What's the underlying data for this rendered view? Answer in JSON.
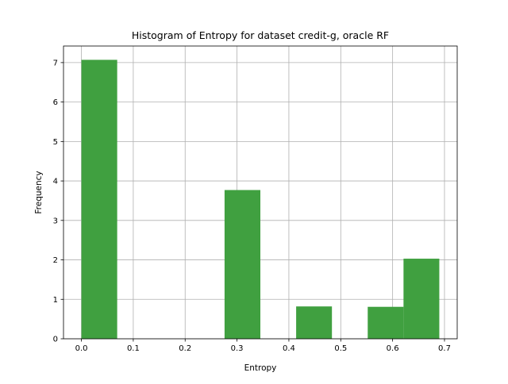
{
  "chart_data": {
    "type": "bar",
    "title": "Histogram of Entropy for dataset credit-g, oracle RF",
    "xlabel": "Entropy",
    "ylabel": "Frequency",
    "bins": [
      {
        "x0": 0.0,
        "x1": 0.069,
        "value": 7.07
      },
      {
        "x0": 0.069,
        "x1": 0.138,
        "value": 0
      },
      {
        "x0": 0.138,
        "x1": 0.207,
        "value": 0
      },
      {
        "x0": 0.207,
        "x1": 0.276,
        "value": 0
      },
      {
        "x0": 0.276,
        "x1": 0.345,
        "value": 3.77
      },
      {
        "x0": 0.345,
        "x1": 0.414,
        "value": 0
      },
      {
        "x0": 0.414,
        "x1": 0.483,
        "value": 0.82
      },
      {
        "x0": 0.483,
        "x1": 0.552,
        "value": 0
      },
      {
        "x0": 0.552,
        "x1": 0.621,
        "value": 0.81
      },
      {
        "x0": 0.621,
        "x1": 0.69,
        "value": 2.03
      }
    ],
    "xlim": [
      -0.0345,
      0.7245
    ],
    "ylim": [
      0,
      7.42
    ],
    "xticks": [
      "0.0",
      "0.1",
      "0.2",
      "0.3",
      "0.4",
      "0.5",
      "0.6",
      "0.7"
    ],
    "xtick_values": [
      0,
      0.1,
      0.2,
      0.3,
      0.4,
      0.5,
      0.6,
      0.7
    ],
    "yticks": [
      "0",
      "1",
      "2",
      "3",
      "4",
      "5",
      "6",
      "7"
    ],
    "ytick_values": [
      0,
      1,
      2,
      3,
      4,
      5,
      6,
      7
    ],
    "grid": true,
    "bar_color": "#40a040",
    "grid_color": "#b0b0b0"
  }
}
